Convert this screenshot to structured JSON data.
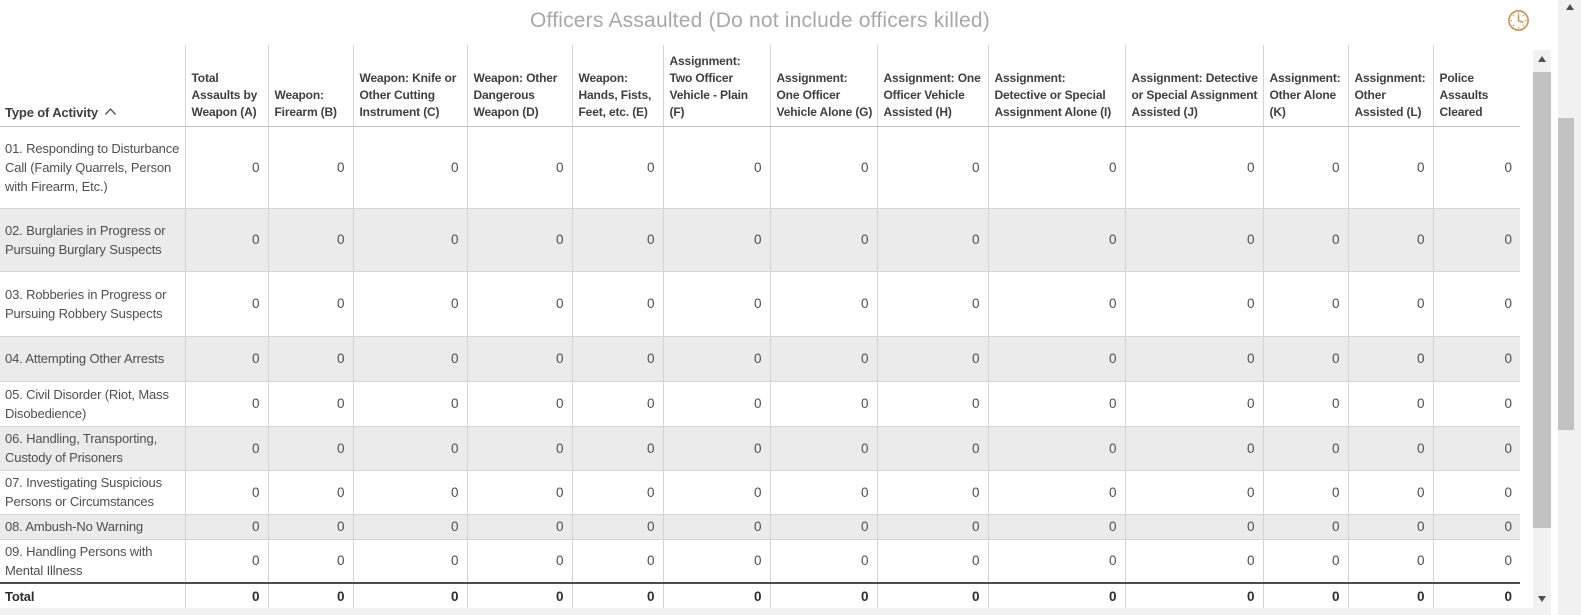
{
  "title": "Officers Assaulted (Do not include officers killed)",
  "icons": {
    "header_right": "clock-icon",
    "activity_sort": "chevron-up-icon"
  },
  "colors": {
    "title_text": "#a8a8a8",
    "header_text": "#3f3f3f",
    "body_text": "#4f4f4f",
    "zebra_row": "#ebebeb",
    "grid_border": "#d4d4d4",
    "total_border": "#4d4d4d",
    "clock_icon": "#c49a5f",
    "scroll_track": "#f1f1f1",
    "scroll_thumb": "#c2c2c2"
  },
  "table": {
    "activity_header": "Type of Activity",
    "columns": [
      {
        "id": "total-assaults-by-weapon-a",
        "label": "Total Assaults by Weapon (A)"
      },
      {
        "id": "weapon-firearm-b",
        "label": "Weapon: Firearm (B)"
      },
      {
        "id": "weapon-knife-or-cutting-c",
        "label": "Weapon: Knife or Other Cutting Instrument (C)"
      },
      {
        "id": "weapon-other-dangerous-d",
        "label": "Weapon: Other Dangerous Weapon (D)"
      },
      {
        "id": "weapon-hands-fists-feet-e",
        "label": "Weapon: Hands, Fists, Feet, etc. (E)"
      },
      {
        "id": "assignment-two-officer-vehicle-plain-f",
        "label": "Assignment: Two Officer Vehicle - Plain (F)"
      },
      {
        "id": "assignment-one-officer-vehicle-alone-g",
        "label": "Assignment: One Officer Vehicle Alone (G)"
      },
      {
        "id": "assignment-one-officer-vehicle-assisted-h",
        "label": "Assignment: One Officer Vehicle Assisted (H)"
      },
      {
        "id": "assignment-detective-special-alone-i",
        "label": "Assignment: Detective or Special Assignment Alone (I)"
      },
      {
        "id": "assignment-detective-special-assisted-j",
        "label": "Assignment: Detective or Special Assignment Assisted (J)"
      },
      {
        "id": "assignment-other-alone-k",
        "label": "Assignment: Other Alone (K)"
      },
      {
        "id": "assignment-other-assisted-l",
        "label": "Assignment: Other Assisted (L)"
      },
      {
        "id": "police-assaults-cleared",
        "label": "Police Assaults Cleared"
      }
    ],
    "rows": [
      {
        "activity": "01. Responding to Disturbance Call (Family Quarrels, Person with Firearm, Etc.)",
        "values": [
          0,
          0,
          0,
          0,
          0,
          0,
          0,
          0,
          0,
          0,
          0,
          0,
          0
        ]
      },
      {
        "activity": "02. Burglaries in Progress or Pursuing Burglary Suspects",
        "values": [
          0,
          0,
          0,
          0,
          0,
          0,
          0,
          0,
          0,
          0,
          0,
          0,
          0
        ]
      },
      {
        "activity": "03. Robberies in Progress or Pursuing Robbery Suspects",
        "values": [
          0,
          0,
          0,
          0,
          0,
          0,
          0,
          0,
          0,
          0,
          0,
          0,
          0
        ]
      },
      {
        "activity": "04. Attempting Other Arrests",
        "values": [
          0,
          0,
          0,
          0,
          0,
          0,
          0,
          0,
          0,
          0,
          0,
          0,
          0
        ]
      },
      {
        "activity": "05. Civil Disorder (Riot, Mass Disobedience)",
        "values": [
          0,
          0,
          0,
          0,
          0,
          0,
          0,
          0,
          0,
          0,
          0,
          0,
          0
        ]
      },
      {
        "activity": "06. Handling, Transporting, Custody of Prisoners",
        "values": [
          0,
          0,
          0,
          0,
          0,
          0,
          0,
          0,
          0,
          0,
          0,
          0,
          0
        ]
      },
      {
        "activity": "07. Investigating Suspicious Persons or Circumstances",
        "values": [
          0,
          0,
          0,
          0,
          0,
          0,
          0,
          0,
          0,
          0,
          0,
          0,
          0
        ]
      },
      {
        "activity": "08. Ambush-No Warning",
        "values": [
          0,
          0,
          0,
          0,
          0,
          0,
          0,
          0,
          0,
          0,
          0,
          0,
          0
        ]
      },
      {
        "activity": "09. Handling Persons with Mental Illness",
        "values": [
          0,
          0,
          0,
          0,
          0,
          0,
          0,
          0,
          0,
          0,
          0,
          0,
          0
        ]
      }
    ],
    "total": {
      "label": "Total",
      "values": [
        0,
        0,
        0,
        0,
        0,
        0,
        0,
        0,
        0,
        0,
        0,
        0,
        0
      ]
    }
  }
}
